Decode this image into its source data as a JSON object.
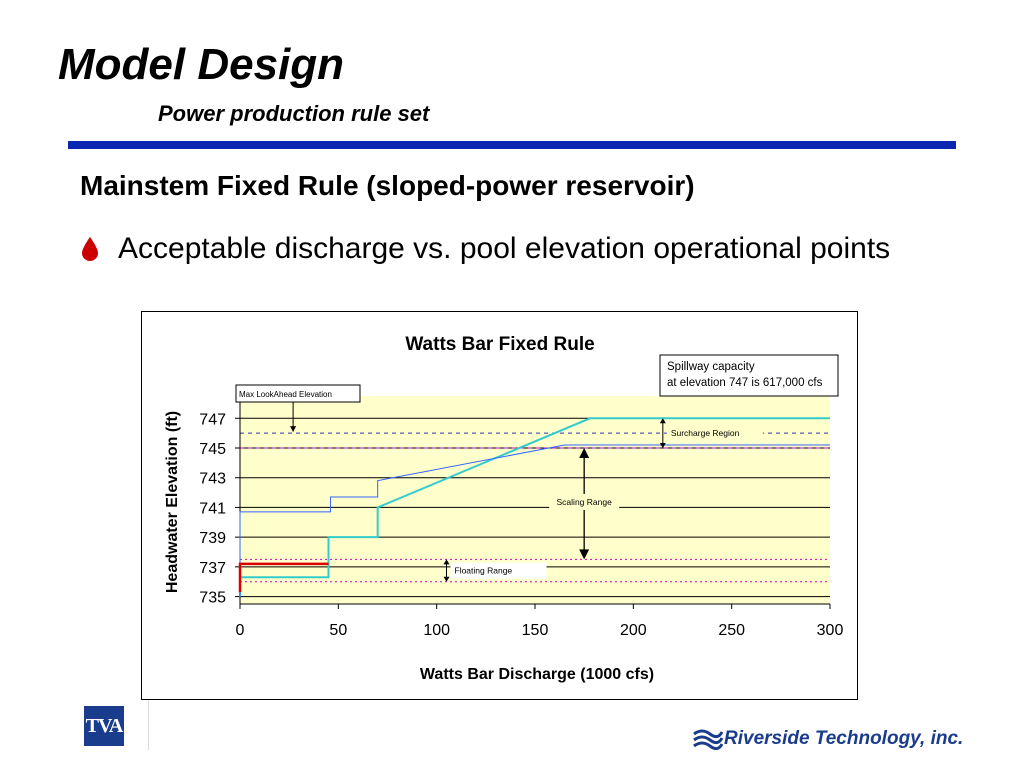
{
  "slide": {
    "title": "Model Design",
    "subtitle": "Power production rule set",
    "heading": "Mainstem Fixed Rule (sloped-power reservoir)",
    "bullet": "Acceptable discharge vs. pool elevation operational points"
  },
  "footer": {
    "left_logo": "TVA",
    "right_logo": "Riverside Technology, inc."
  },
  "colors": {
    "accent_rule": "#0b26b0",
    "plot_bg": "#ffffcc",
    "cyan": "#33cccc",
    "blue": "#3366ff",
    "red": "#dd0000",
    "magenta": "#cc00cc"
  },
  "chart_data": {
    "type": "line",
    "title": "Watts Bar Fixed Rule",
    "xlabel": "Watts Bar Discharge (1000 cfs)",
    "ylabel": "Headwater Elevation (ft)",
    "xlim": [
      0,
      300
    ],
    "ylim": [
      734.5,
      748.5
    ],
    "xticks": [
      0,
      50,
      100,
      150,
      200,
      250,
      300
    ],
    "yticks": [
      735,
      737,
      739,
      741,
      743,
      745,
      747
    ],
    "grid": true,
    "series": [
      {
        "color": "#33cccc",
        "width": 2,
        "x": [
          0,
          0,
          45,
          45,
          70,
          70,
          178,
          300
        ],
        "y": [
          735,
          736.3,
          736.3,
          739,
          739,
          741,
          747,
          747
        ]
      },
      {
        "color": "#3366ff",
        "width": 1,
        "x": [
          0,
          0,
          46,
          46,
          70,
          70,
          165,
          300
        ],
        "y": [
          735,
          740.7,
          740.7,
          741.7,
          741.7,
          742.8,
          745.2,
          745.2
        ]
      },
      {
        "color": "#dd0000",
        "width": 2.5,
        "x": [
          0,
          0,
          45
        ],
        "y": [
          735.3,
          737.2,
          737.2
        ]
      }
    ],
    "reference_lines": [
      {
        "y": 746.0,
        "color": "#3333aa",
        "style": "dashed"
      },
      {
        "y": 745.0,
        "color": "#cc00cc",
        "style": "dashed"
      },
      {
        "y": 737.5,
        "color": "#cc00cc",
        "style": "dotted"
      },
      {
        "y": 736.0,
        "color": "#cc00cc",
        "style": "dotted"
      }
    ],
    "annotations": {
      "max_lookahead": "Max LookAhead Elevation",
      "spillway": "Spillway capacity at elevation 747 is 617,000 cfs",
      "surcharge": "Surcharge Region",
      "scaling": "Scaling Range",
      "floating": "Floating Range"
    }
  }
}
